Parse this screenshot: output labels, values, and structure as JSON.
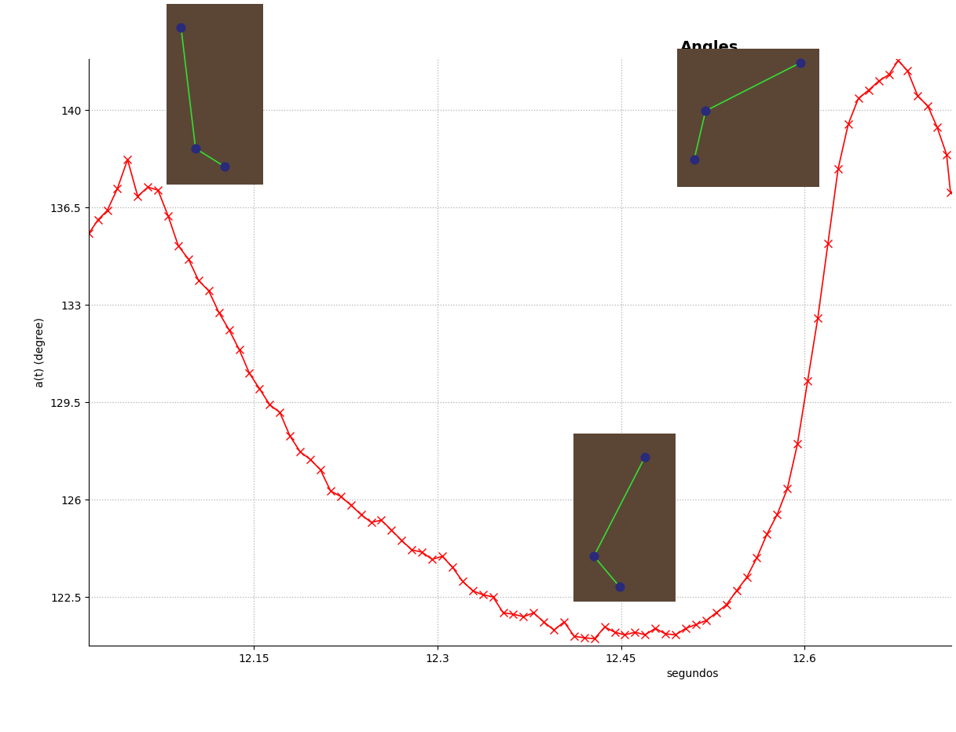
{
  "chart_data": {
    "type": "line",
    "title": "Angles",
    "x_label": "segundos",
    "y_label": "a(t) (degree)",
    "color": "#ff0000",
    "marker": "x",
    "line_style": "solid",
    "grid": true,
    "x": [
      12.015,
      12.0224,
      12.03,
      12.0383,
      12.0466,
      12.0549,
      12.0632,
      12.0715,
      12.0798,
      12.0881,
      12.0964,
      12.1047,
      12.113,
      12.1213,
      12.1296,
      12.1379,
      12.1462,
      12.1545,
      12.1628,
      12.1711,
      12.1794,
      12.1877,
      12.196,
      12.2043,
      12.2126,
      12.2209,
      12.2292,
      12.2375,
      12.2458,
      12.2541,
      12.2624,
      12.2707,
      12.279,
      12.2873,
      12.2956,
      12.3039,
      12.3122,
      12.3205,
      12.3288,
      12.3371,
      12.3454,
      12.3537,
      12.362,
      12.3703,
      12.3786,
      12.3869,
      12.3952,
      12.4035,
      12.4118,
      12.4201,
      12.4284,
      12.4367,
      12.445,
      12.4532,
      12.4615,
      12.4698,
      12.4781,
      12.4864,
      12.4947,
      12.503,
      12.5113,
      12.5196,
      12.5279,
      12.5362,
      12.5445,
      12.5528,
      12.5611,
      12.5694,
      12.5777,
      12.586,
      12.5943,
      12.6026,
      12.6109,
      12.6192,
      12.6275,
      12.6358,
      12.6441,
      12.6524,
      12.6607,
      12.669,
      12.6767,
      12.6843,
      12.6926,
      12.7009,
      12.7085,
      12.7162,
      12.7194
    ],
    "values": [
      135.57,
      136.05,
      136.39,
      137.18,
      138.22,
      136.9,
      137.23,
      137.12,
      136.19,
      135.12,
      134.64,
      133.87,
      133.5,
      132.72,
      132.1,
      131.39,
      130.54,
      129.98,
      129.41,
      129.13,
      128.28,
      127.72,
      127.44,
      127.07,
      126.31,
      126.11,
      125.8,
      125.46,
      125.18,
      125.26,
      124.9,
      124.53,
      124.19,
      124.11,
      123.85,
      123.96,
      123.57,
      123.06,
      122.72,
      122.58,
      122.5,
      121.93,
      121.88,
      121.79,
      121.93,
      121.6,
      121.31,
      121.6,
      121.09,
      121.03,
      121.0,
      121.42,
      121.23,
      121.14,
      121.23,
      121.14,
      121.37,
      121.17,
      121.14,
      121.37,
      121.51,
      121.65,
      121.93,
      122.22,
      122.72,
      123.2,
      123.91,
      124.76,
      125.46,
      126.39,
      128.0,
      130.26,
      132.52,
      135.2,
      137.88,
      139.49,
      140.42,
      140.71,
      141.04,
      141.27,
      141.78,
      141.41,
      140.51,
      140.14,
      139.38,
      138.4,
      137.04
    ],
    "xlim": [
      12.015,
      12.72
    ],
    "xticks": [
      12.15,
      12.3,
      12.45,
      12.6
    ],
    "ylim": [
      120.75,
      141.85
    ],
    "yticks": [
      122.5,
      126,
      129.5,
      133,
      136.5,
      140
    ]
  }
}
